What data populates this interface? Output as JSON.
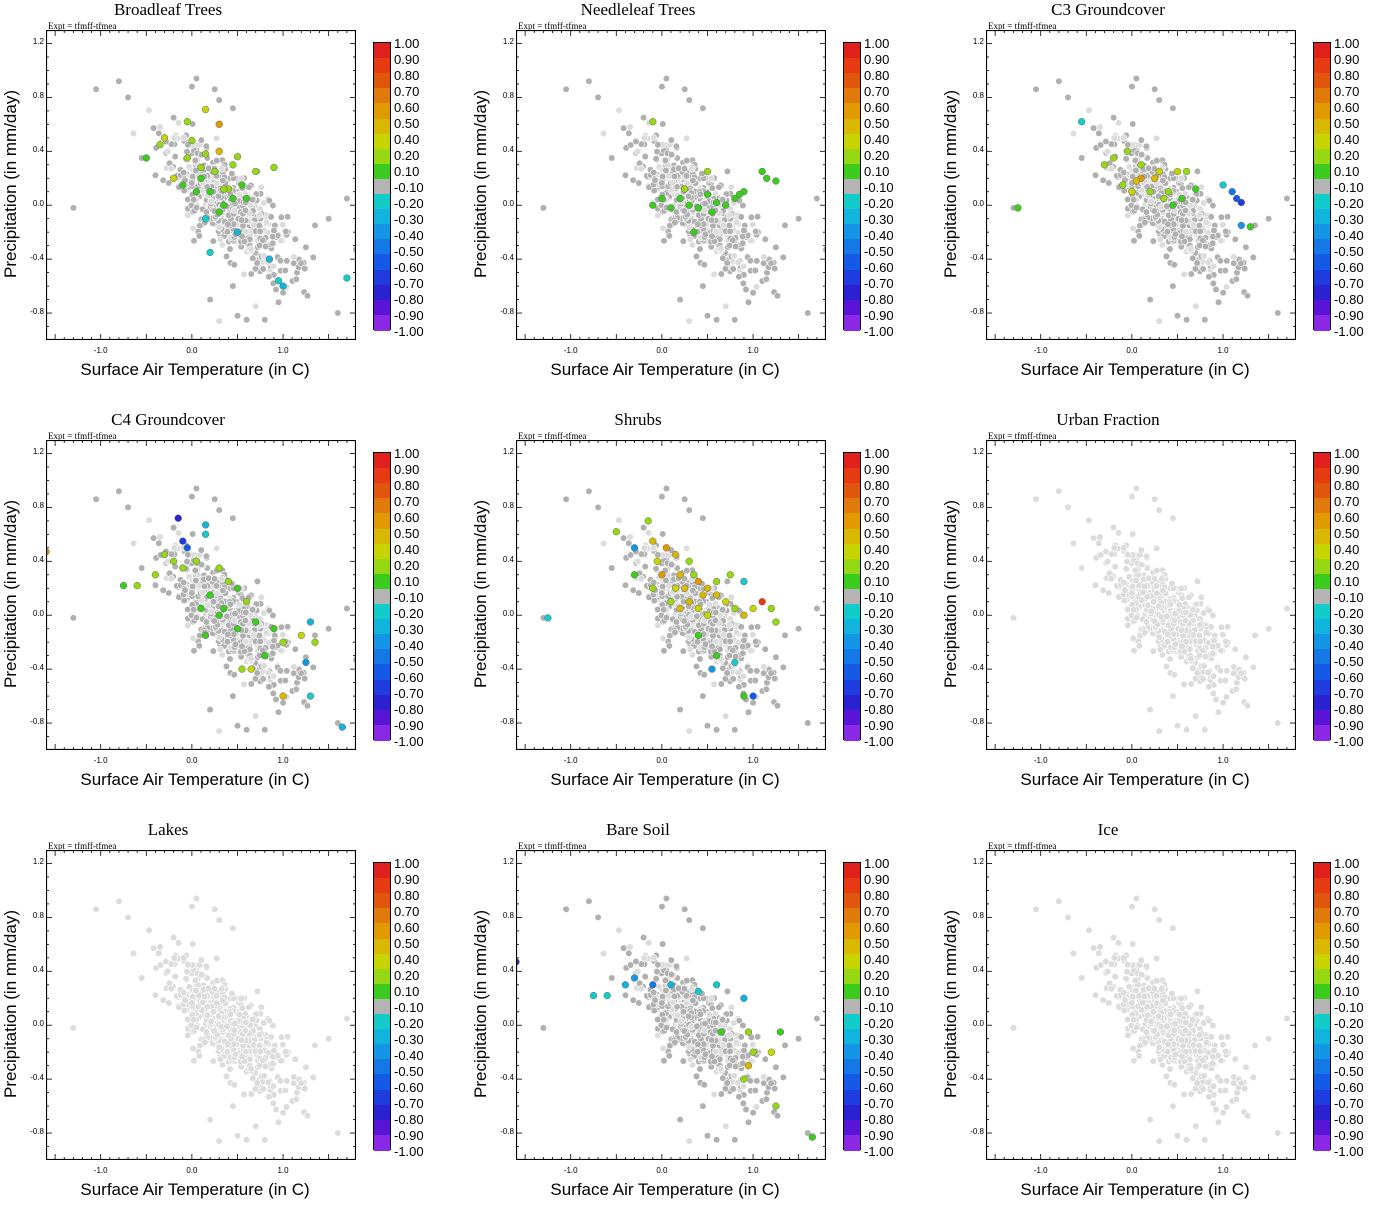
{
  "expt_label": "Expt = tfmff-tfmea",
  "x_label": "Surface Air Temperature (in C)",
  "y_label": "Precipitation (in mm/day)",
  "x_ticks": [
    "-1.0",
    "0.0",
    "1.0"
  ],
  "y_ticks": [
    "1.2",
    "0.8",
    "0.4",
    "0.0",
    "-0.4",
    "-0.8"
  ],
  "colorbar": {
    "labels": [
      "1.00",
      "0.90",
      "0.80",
      "0.70",
      "0.60",
      "0.50",
      "0.40",
      "0.20",
      "0.10",
      "-0.10",
      "-0.20",
      "-0.30",
      "-0.40",
      "-0.50",
      "-0.60",
      "-0.70",
      "-0.80",
      "-0.90",
      "-1.00"
    ],
    "colors": [
      "#e0201a",
      "#e63a12",
      "#e0560c",
      "#e07a0a",
      "#e09a00",
      "#d8b800",
      "#c8d400",
      "#96d814",
      "#3ccc1e",
      "#b4b4b4",
      "#12cccc",
      "#10b4dc",
      "#1496e6",
      "#1478e6",
      "#145ae6",
      "#1e3ce0",
      "#2a22d2",
      "#5a14d8",
      "#8a28e6"
    ]
  },
  "panel_titles": [
    "Broadleaf Trees",
    "Needleleaf Trees",
    "C3 Groundcover",
    "C4 Groundcover",
    "Shrubs",
    "Urban Fraction",
    "Lakes",
    "Bare Soil",
    "Ice"
  ],
  "chart_data": [
    {
      "type": "scatter",
      "title": "Broadleaf Trees",
      "xlabel": "Surface Air Temperature (in C)",
      "ylabel": "Precipitation (in mm/day)",
      "xlim": [
        -1.6,
        1.8
      ],
      "ylim": [
        -1.0,
        1.3
      ],
      "colorbar_range": [
        -1.0,
        1.0
      ],
      "colored_points": [
        [
          0.15,
          0.71
        ],
        [
          -0.05,
          0.62
        ],
        [
          0.0,
          0.48
        ],
        [
          -0.3,
          0.5
        ],
        [
          -0.35,
          0.45
        ],
        [
          0.15,
          0.38
        ],
        [
          -0.05,
          0.35
        ],
        [
          0.3,
          0.4
        ],
        [
          0.5,
          0.36
        ],
        [
          0.9,
          0.28
        ],
        [
          0.3,
          0.6
        ],
        [
          0.1,
          0.2
        ],
        [
          0.2,
          0.1
        ],
        [
          0.4,
          0.12
        ],
        [
          0.6,
          0.05
        ],
        [
          0.35,
          0.0
        ],
        [
          0.1,
          0.28
        ],
        [
          -0.1,
          0.15
        ],
        [
          0.25,
          0.25
        ],
        [
          -0.5,
          0.35
        ],
        [
          0.55,
          0.15
        ],
        [
          0.7,
          0.25
        ],
        [
          0.45,
          0.3
        ],
        [
          0.3,
          -0.05
        ],
        [
          0.15,
          -0.1
        ],
        [
          0.5,
          -0.2
        ],
        [
          0.2,
          -0.35
        ],
        [
          0.85,
          -0.4
        ],
        [
          1.0,
          -0.6
        ],
        [
          0.95,
          -0.56
        ],
        [
          1.7,
          -0.54
        ],
        [
          0.35,
          0.12
        ],
        [
          0.05,
          0.1
        ],
        [
          0.45,
          0.05
        ],
        [
          -0.2,
          0.2
        ]
      ],
      "colored_values": [
        0.4,
        0.3,
        0.2,
        0.4,
        0.3,
        0.2,
        0.2,
        0.5,
        0.2,
        0.2,
        0.6,
        0.1,
        0.1,
        0.2,
        0.1,
        0.1,
        0.3,
        0.1,
        0.2,
        0.1,
        0.1,
        0.2,
        0.3,
        0.1,
        -0.2,
        -0.3,
        -0.2,
        -0.3,
        -0.3,
        -0.2,
        -0.2,
        0.2,
        0.1,
        0.1,
        0.4
      ]
    },
    {
      "type": "scatter",
      "title": "Needleleaf Trees",
      "xlabel": "Surface Air Temperature (in C)",
      "ylabel": "Precipitation (in mm/day)",
      "xlim": [
        -1.6,
        1.8
      ],
      "ylim": [
        -1.0,
        1.3
      ],
      "colorbar_range": [
        -1.0,
        1.0
      ],
      "colored_points": [
        [
          -0.1,
          0.62
        ],
        [
          0.5,
          0.25
        ],
        [
          0.2,
          0.05
        ],
        [
          0.3,
          0.0
        ],
        [
          0.4,
          -0.02
        ],
        [
          0.6,
          0.02
        ],
        [
          0.8,
          0.05
        ],
        [
          0.9,
          0.1
        ],
        [
          1.1,
          0.25
        ],
        [
          1.15,
          0.2
        ],
        [
          1.25,
          0.18
        ],
        [
          0.1,
          -0.02
        ],
        [
          -0.1,
          0.0
        ],
        [
          0.0,
          0.05
        ],
        [
          0.7,
          0.0
        ],
        [
          0.5,
          0.08
        ],
        [
          0.35,
          -0.2
        ],
        [
          0.85,
          0.08
        ],
        [
          0.25,
          0.12
        ],
        [
          0.55,
          -0.05
        ]
      ],
      "colored_values": [
        0.2,
        0.3,
        0.1,
        0.1,
        0.1,
        0.1,
        0.1,
        0.1,
        0.1,
        0.1,
        0.1,
        0.1,
        0.1,
        0.1,
        0.1,
        0.1,
        0.1,
        0.1,
        0.2,
        0.1
      ]
    },
    {
      "type": "scatter",
      "title": "C3 Groundcover",
      "xlabel": "Surface Air Temperature (in C)",
      "ylabel": "Precipitation (in mm/day)",
      "xlim": [
        -1.6,
        1.8
      ],
      "ylim": [
        -1.0,
        1.3
      ],
      "colorbar_range": [
        -1.0,
        1.0
      ],
      "colored_points": [
        [
          -1.25,
          -0.02
        ],
        [
          -0.55,
          0.62
        ],
        [
          -0.3,
          0.3
        ],
        [
          -0.05,
          0.4
        ],
        [
          0.1,
          0.2
        ],
        [
          0.1,
          0.3
        ],
        [
          0.3,
          0.25
        ],
        [
          0.5,
          0.25
        ],
        [
          0.6,
          0.25
        ],
        [
          0.05,
          0.18
        ],
        [
          0.2,
          0.1
        ],
        [
          0.35,
          0.05
        ],
        [
          0.0,
          0.1
        ],
        [
          -0.1,
          0.15
        ],
        [
          0.4,
          0.1
        ],
        [
          0.55,
          0.05
        ],
        [
          1.0,
          0.15
        ],
        [
          1.1,
          0.1
        ],
        [
          1.15,
          0.05
        ],
        [
          1.2,
          0.02
        ],
        [
          1.2,
          -0.15
        ],
        [
          1.3,
          -0.16
        ],
        [
          0.25,
          0.2
        ],
        [
          0.45,
          0.0
        ],
        [
          -0.2,
          0.35
        ],
        [
          0.7,
          0.12
        ]
      ],
      "colored_values": [
        0.1,
        -0.2,
        0.3,
        0.3,
        0.6,
        0.2,
        0.4,
        0.4,
        0.3,
        0.5,
        0.3,
        0.2,
        0.4,
        0.2,
        0.2,
        0.1,
        -0.2,
        -0.5,
        -0.6,
        -0.7,
        -0.4,
        0.1,
        0.5,
        0.1,
        0.3,
        0.1
      ]
    },
    {
      "type": "scatter",
      "title": "C4 Groundcover",
      "xlabel": "Surface Air Temperature (in C)",
      "ylabel": "Precipitation (in mm/day)",
      "xlim": [
        -1.6,
        1.8
      ],
      "ylim": [
        -1.0,
        1.3
      ],
      "colorbar_range": [
        -1.0,
        1.0
      ],
      "colored_points": [
        [
          -1.6,
          0.47
        ],
        [
          -0.75,
          0.22
        ],
        [
          -0.6,
          0.22
        ],
        [
          -0.4,
          0.3
        ],
        [
          -0.3,
          0.45
        ],
        [
          -0.1,
          0.35
        ],
        [
          -0.15,
          0.72
        ],
        [
          -0.1,
          0.55
        ],
        [
          -0.05,
          0.5
        ],
        [
          0.15,
          0.67
        ],
        [
          0.15,
          0.6
        ],
        [
          0.05,
          0.4
        ],
        [
          0.3,
          0.35
        ],
        [
          0.4,
          0.25
        ],
        [
          0.5,
          0.2
        ],
        [
          0.2,
          0.15
        ],
        [
          0.1,
          0.05
        ],
        [
          0.3,
          0.0
        ],
        [
          0.6,
          0.1
        ],
        [
          0.7,
          -0.05
        ],
        [
          0.5,
          -0.1
        ],
        [
          0.9,
          -0.1
        ],
        [
          1.0,
          -0.2
        ],
        [
          1.2,
          -0.15
        ],
        [
          1.3,
          -0.05
        ],
        [
          1.35,
          -0.2
        ],
        [
          1.25,
          -0.35
        ],
        [
          1.0,
          -0.6
        ],
        [
          1.3,
          -0.6
        ],
        [
          1.65,
          -0.83
        ],
        [
          0.65,
          -0.4
        ],
        [
          0.55,
          -0.4
        ],
        [
          0.8,
          -0.3
        ],
        [
          -0.2,
          0.4
        ],
        [
          0.35,
          0.05
        ],
        [
          0.15,
          -0.15
        ]
      ],
      "colored_values": [
        0.6,
        0.1,
        0.3,
        0.3,
        0.2,
        0.2,
        -0.8,
        -0.7,
        -0.6,
        -0.3,
        -0.2,
        0.2,
        0.2,
        0.3,
        0.1,
        0.1,
        0.1,
        0.1,
        0.2,
        0.1,
        0.1,
        0.1,
        0.3,
        0.4,
        -0.3,
        0.3,
        -0.4,
        0.5,
        -0.2,
        -0.3,
        0.4,
        0.3,
        0.1,
        0.2,
        0.1,
        0.1
      ]
    },
    {
      "type": "scatter",
      "title": "Shrubs",
      "xlabel": "Surface Air Temperature (in C)",
      "ylabel": "Precipitation (in mm/day)",
      "xlim": [
        -1.6,
        1.8
      ],
      "ylim": [
        -1.0,
        1.3
      ],
      "colorbar_range": [
        -1.0,
        1.0
      ],
      "colored_points": [
        [
          -1.25,
          -0.02
        ],
        [
          -0.15,
          0.7
        ],
        [
          -0.5,
          0.62
        ],
        [
          -0.3,
          0.5
        ],
        [
          -0.1,
          0.55
        ],
        [
          0.05,
          0.5
        ],
        [
          0.15,
          0.45
        ],
        [
          0.3,
          0.4
        ],
        [
          0.2,
          0.3
        ],
        [
          0.0,
          0.3
        ],
        [
          0.4,
          0.25
        ],
        [
          0.5,
          0.2
        ],
        [
          0.6,
          0.15
        ],
        [
          0.7,
          0.1
        ],
        [
          0.3,
          0.1
        ],
        [
          0.1,
          0.1
        ],
        [
          0.2,
          0.05
        ],
        [
          0.4,
          0.05
        ],
        [
          0.5,
          0.0
        ],
        [
          0.8,
          0.05
        ],
        [
          0.9,
          0.0
        ],
        [
          1.0,
          0.05
        ],
        [
          1.1,
          0.1
        ],
        [
          1.2,
          0.05
        ],
        [
          1.25,
          -0.05
        ],
        [
          -0.3,
          0.3
        ],
        [
          -0.1,
          0.2
        ],
        [
          0.25,
          0.2
        ],
        [
          0.6,
          0.25
        ],
        [
          0.75,
          0.3
        ],
        [
          0.9,
          0.25
        ],
        [
          0.4,
          -0.15
        ],
        [
          0.6,
          -0.3
        ],
        [
          0.55,
          -0.4
        ],
        [
          0.9,
          -0.6
        ],
        [
          0.8,
          -0.35
        ],
        [
          1.0,
          -0.6
        ],
        [
          0.35,
          0.3
        ],
        [
          -0.05,
          0.4
        ],
        [
          0.15,
          0.2
        ],
        [
          0.45,
          0.15
        ]
      ],
      "colored_values": [
        -0.2,
        0.3,
        0.2,
        -0.4,
        0.5,
        0.6,
        0.5,
        0.2,
        0.5,
        0.6,
        0.6,
        0.5,
        0.5,
        0.4,
        0.5,
        0.3,
        0.5,
        0.4,
        0.4,
        0.3,
        0.5,
        0.4,
        0.9,
        0.3,
        0.3,
        0.1,
        0.2,
        0.5,
        0.3,
        0.2,
        -0.2,
        0.1,
        0.1,
        -0.4,
        0.1,
        -0.2,
        -0.6,
        0.3,
        0.4,
        0.4,
        0.5
      ]
    },
    {
      "type": "scatter",
      "title": "Urban Fraction",
      "xlabel": "Surface Air Temperature (in C)",
      "ylabel": "Precipitation (in mm/day)",
      "xlim": [
        -1.6,
        1.8
      ],
      "ylim": [
        -1.0,
        1.3
      ],
      "colorbar_range": [
        -1.0,
        1.0
      ],
      "colored_points": [],
      "colored_values": []
    },
    {
      "type": "scatter",
      "title": "Lakes",
      "xlabel": "Surface Air Temperature (in C)",
      "ylabel": "Precipitation (in mm/day)",
      "xlim": [
        -1.6,
        1.8
      ],
      "ylim": [
        -1.0,
        1.3
      ],
      "colorbar_range": [
        -1.0,
        1.0
      ],
      "colored_points": [],
      "colored_values": []
    },
    {
      "type": "scatter",
      "title": "Bare Soil",
      "xlabel": "Surface Air Temperature (in C)",
      "ylabel": "Precipitation (in mm/day)",
      "xlim": [
        -1.6,
        1.8
      ],
      "ylim": [
        -1.0,
        1.3
      ],
      "colorbar_range": [
        -1.0,
        1.0
      ],
      "colored_points": [
        [
          -1.6,
          0.47
        ],
        [
          -0.75,
          0.22
        ],
        [
          -0.6,
          0.22
        ],
        [
          -0.4,
          0.3
        ],
        [
          -0.3,
          0.35
        ],
        [
          -0.1,
          0.3
        ],
        [
          0.1,
          0.3
        ],
        [
          0.6,
          0.3
        ],
        [
          0.9,
          0.2
        ],
        [
          0.65,
          -0.05
        ],
        [
          0.95,
          -0.05
        ],
        [
          1.3,
          -0.05
        ],
        [
          1.0,
          -0.2
        ],
        [
          1.2,
          -0.2
        ],
        [
          0.95,
          -0.3
        ],
        [
          0.9,
          -0.4
        ],
        [
          1.25,
          -0.6
        ],
        [
          1.65,
          -0.83
        ],
        [
          0.4,
          0.25
        ]
      ],
      "colored_values": [
        -0.8,
        -0.2,
        -0.2,
        -0.3,
        -0.4,
        -0.5,
        -0.3,
        -0.2,
        -0.3,
        0.1,
        0.2,
        0.1,
        0.3,
        0.4,
        0.5,
        0.3,
        0.3,
        0.1,
        -0.2
      ]
    },
    {
      "type": "scatter",
      "title": "Ice",
      "xlabel": "Surface Air Temperature (in C)",
      "ylabel": "Precipitation (in mm/day)",
      "xlim": [
        -1.6,
        1.8
      ],
      "ylim": [
        -1.0,
        1.3
      ],
      "colorbar_range": [
        -1.0,
        1.0
      ],
      "colored_points": [],
      "colored_values": []
    }
  ]
}
